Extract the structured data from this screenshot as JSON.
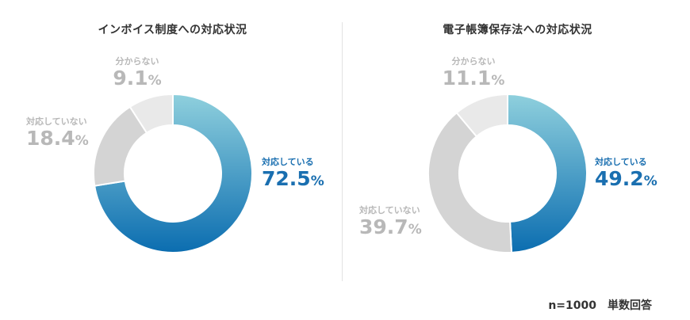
{
  "chart_data": [
    {
      "type": "pie",
      "title": "インボイス制度への対応状況",
      "categories": [
        "対応している",
        "対応していない",
        "分からない"
      ],
      "values": [
        72.5,
        18.4,
        9.1
      ],
      "unit": "%",
      "colors": [
        "#1a6fb0",
        "#d4d4d4",
        "#e9e9e9"
      ]
    },
    {
      "type": "pie",
      "title": "電子帳簿保存法への対応状況",
      "categories": [
        "対応している",
        "対応していない",
        "分からない"
      ],
      "values": [
        49.2,
        39.7,
        11.1
      ],
      "unit": "%",
      "colors": [
        "#1a6fb0",
        "#d4d4d4",
        "#e9e9e9"
      ]
    }
  ],
  "footnote": "n=1000　単数回答",
  "colors": {
    "blue_start": "#8fd0dd",
    "blue_end": "#0b6db0",
    "not_doing": "#d4d4d4",
    "unknown": "#e9e9e9",
    "label_grey": "#b8b8b8",
    "label_blue": "#1a6fb0"
  }
}
